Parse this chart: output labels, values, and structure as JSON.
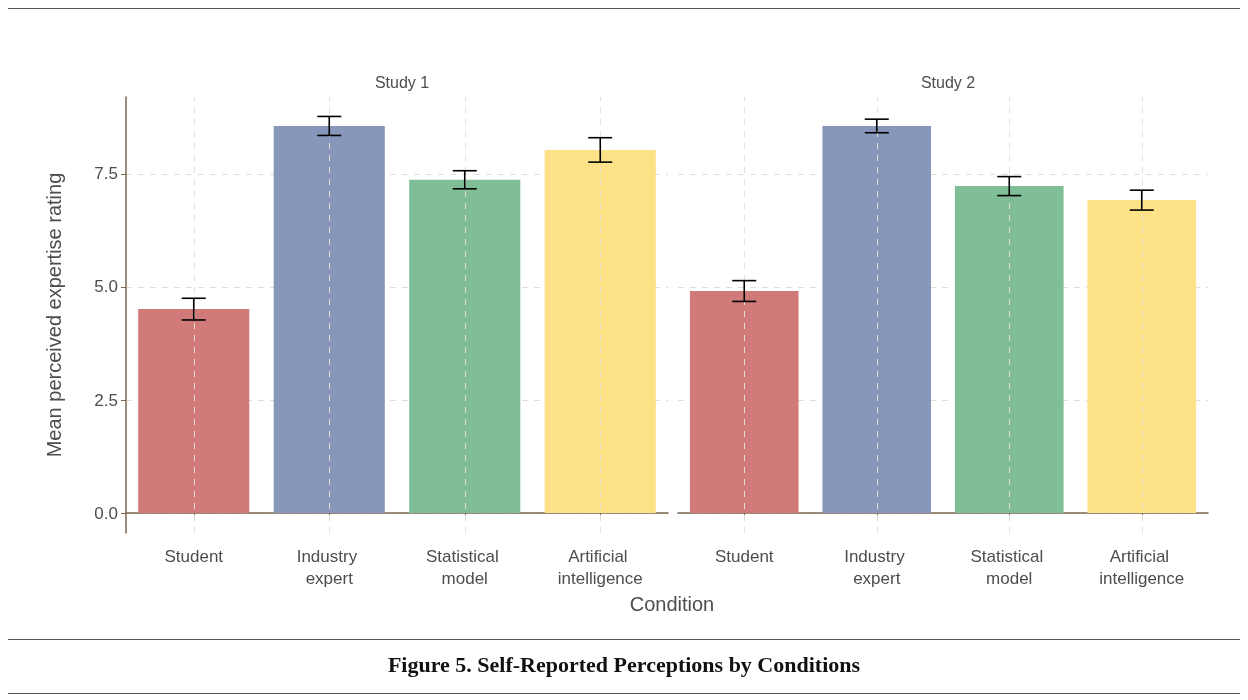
{
  "chart_data": [
    {
      "type": "bar",
      "title": "Study 1",
      "xlabel": "Condition",
      "ylabel": "Mean perceived expertise rating",
      "categories": [
        "Student",
        "Industry expert",
        "Statistical model",
        "Artificial intelligence"
      ],
      "values": [
        4.51,
        8.56,
        7.37,
        8.03
      ],
      "errors": [
        0.24,
        0.21,
        0.2,
        0.27
      ],
      "colors": [
        "#d07a79",
        "#8796bb",
        "#7fbe97",
        "#fde287"
      ],
      "ylim": [
        -0.44,
        9.2
      ],
      "yticks": [
        {
          "value": 0,
          "label": "0.0"
        },
        {
          "value": 2.5,
          "label": "2.5"
        },
        {
          "value": 5,
          "label": "5.0"
        },
        {
          "value": 7.5,
          "label": "7.5"
        }
      ],
      "grid": true,
      "annotations": [
        "Figure 5.  Self-Reported Perceptions by Conditions"
      ]
    },
    {
      "type": "bar",
      "title": "Study 2",
      "categories": [
        "Student",
        "Industry expert",
        "Statistical model",
        "Artificial intelligence"
      ],
      "values": [
        4.91,
        8.56,
        7.23,
        6.92
      ],
      "errors": [
        0.23,
        0.15,
        0.21,
        0.22
      ],
      "colors": [
        "#d07a79",
        "#8796bb",
        "#7fbe97",
        "#fde287"
      ],
      "ylim": [
        -0.44,
        9.2
      ],
      "yticks": [
        0,
        2.5,
        5,
        7.5
      ],
      "grid": true,
      "tick_labels": "x"
    }
  ]
}
